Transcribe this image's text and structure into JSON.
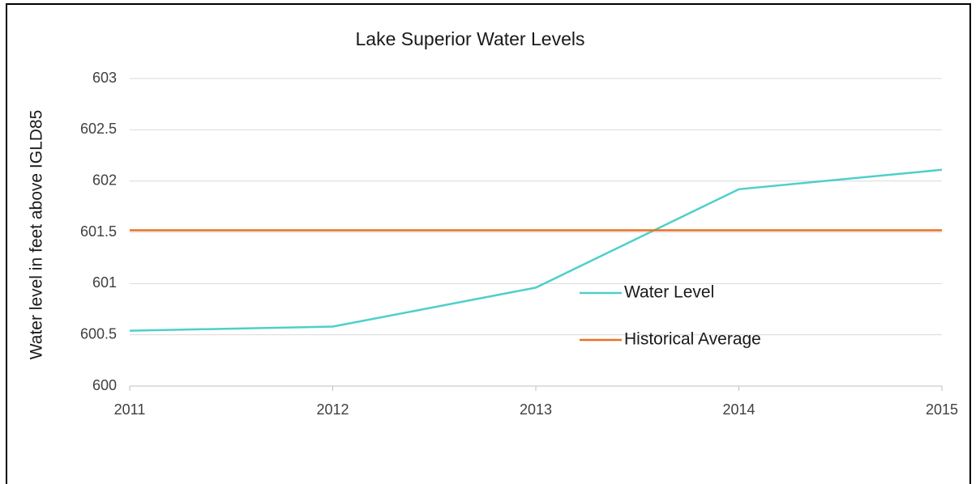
{
  "chart_data": {
    "type": "line",
    "title": "Lake Superior Water Levels",
    "y_label": "Water level in feet above IGLD85",
    "x": [
      2011,
      2012,
      2013,
      2014,
      2015
    ],
    "xlim": [
      2011,
      2015
    ],
    "xticks": [
      2011,
      2012,
      2013,
      2014,
      2015
    ],
    "ylim": [
      600,
      603
    ],
    "yticks": [
      600,
      600.5,
      601,
      601.5,
      602,
      602.5,
      603
    ],
    "grid": true,
    "series": [
      {
        "name": "Water Level",
        "color": "#4ecfcb",
        "values": [
          600.54,
          600.58,
          600.96,
          601.92,
          602.11
        ]
      },
      {
        "name": "Historical Average",
        "color": "#ec7022",
        "values": [
          601.52,
          601.52,
          601.52,
          601.52,
          601.52
        ]
      }
    ]
  }
}
